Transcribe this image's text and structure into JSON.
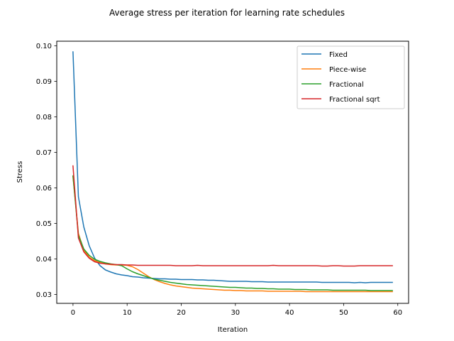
{
  "chart_data": {
    "type": "line",
    "title": "Average stress per iteration for learning rate schedules",
    "xlabel": "Iteration",
    "ylabel": "Stress",
    "xlim": [
      -3,
      62
    ],
    "ylim": [
      0.0275,
      0.1013
    ],
    "xticks": [
      0,
      10,
      20,
      30,
      40,
      50,
      60
    ],
    "yticks": [
      0.03,
      0.04,
      0.05,
      0.06,
      0.07,
      0.08,
      0.09,
      0.1
    ],
    "ytick_labels": [
      "0.03",
      "0.04",
      "0.05",
      "0.06",
      "0.07",
      "0.08",
      "0.09",
      "0.10"
    ],
    "grid": false,
    "legend_position": "top-right",
    "x": [
      0,
      1,
      2,
      3,
      4,
      5,
      6,
      7,
      8,
      9,
      10,
      11,
      12,
      13,
      14,
      15,
      16,
      17,
      18,
      19,
      20,
      21,
      22,
      23,
      24,
      25,
      26,
      27,
      28,
      29,
      30,
      31,
      32,
      33,
      34,
      35,
      36,
      37,
      38,
      39,
      40,
      41,
      42,
      43,
      44,
      45,
      46,
      47,
      48,
      49,
      50,
      51,
      52,
      53,
      54,
      55,
      56,
      57,
      58,
      59
    ],
    "series": [
      {
        "name": "Fixed",
        "color": "#1f77b4",
        "values": [
          0.0983,
          0.0575,
          0.049,
          0.0437,
          0.0402,
          0.0381,
          0.0369,
          0.0363,
          0.0358,
          0.0355,
          0.0353,
          0.035,
          0.0349,
          0.0347,
          0.0346,
          0.0345,
          0.0344,
          0.0344,
          0.0343,
          0.0343,
          0.0342,
          0.0342,
          0.0342,
          0.0341,
          0.0341,
          0.034,
          0.034,
          0.0339,
          0.0338,
          0.0337,
          0.0337,
          0.0337,
          0.0337,
          0.0336,
          0.0336,
          0.0336,
          0.0335,
          0.0335,
          0.0335,
          0.0335,
          0.0335,
          0.0335,
          0.0335,
          0.0335,
          0.0335,
          0.0335,
          0.0334,
          0.0334,
          0.0334,
          0.0334,
          0.0334,
          0.0334,
          0.0333,
          0.0334,
          0.0333,
          0.0334,
          0.0334,
          0.0334,
          0.0334,
          0.0334
        ]
      },
      {
        "name": "Piece-wise",
        "color": "#ff7f0e",
        "values": [
          0.0632,
          0.0472,
          0.0425,
          0.0405,
          0.0395,
          0.039,
          0.0386,
          0.0384,
          0.0383,
          0.0383,
          0.0382,
          0.0378,
          0.037,
          0.036,
          0.035,
          0.0342,
          0.0336,
          0.0331,
          0.0327,
          0.0324,
          0.0322,
          0.032,
          0.0318,
          0.0317,
          0.0316,
          0.0315,
          0.0314,
          0.0313,
          0.0312,
          0.0312,
          0.0311,
          0.0311,
          0.031,
          0.031,
          0.031,
          0.031,
          0.0309,
          0.0309,
          0.0309,
          0.0309,
          0.0309,
          0.0309,
          0.0309,
          0.0308,
          0.0308,
          0.0308,
          0.0308,
          0.0308,
          0.0308,
          0.0308,
          0.0308,
          0.0308,
          0.0308,
          0.0308,
          0.0308,
          0.0308,
          0.0308,
          0.0308,
          0.0308,
          0.0308
        ]
      },
      {
        "name": "Fractional",
        "color": "#2ca02c",
        "values": [
          0.0634,
          0.0467,
          0.0428,
          0.041,
          0.0399,
          0.0393,
          0.0389,
          0.0386,
          0.0384,
          0.0381,
          0.0372,
          0.0364,
          0.0358,
          0.0353,
          0.0348,
          0.0343,
          0.034,
          0.0337,
          0.0334,
          0.0332,
          0.033,
          0.0328,
          0.0327,
          0.0326,
          0.0325,
          0.0324,
          0.0323,
          0.0322,
          0.0321,
          0.032,
          0.032,
          0.0319,
          0.0318,
          0.0318,
          0.0317,
          0.0317,
          0.0316,
          0.0316,
          0.0315,
          0.0315,
          0.0315,
          0.0314,
          0.0314,
          0.0314,
          0.0313,
          0.0313,
          0.0313,
          0.0313,
          0.0312,
          0.0312,
          0.0312,
          0.0312,
          0.0312,
          0.0312,
          0.0312,
          0.0311,
          0.0311,
          0.0311,
          0.0311,
          0.0311
        ]
      },
      {
        "name": "Fractional sqrt",
        "color": "#d62728",
        "values": [
          0.0662,
          0.0459,
          0.042,
          0.0402,
          0.0392,
          0.0388,
          0.0386,
          0.0385,
          0.0384,
          0.0384,
          0.0383,
          0.0383,
          0.0382,
          0.0382,
          0.0382,
          0.0382,
          0.0382,
          0.0382,
          0.0382,
          0.0381,
          0.0381,
          0.0381,
          0.0381,
          0.0382,
          0.0381,
          0.0381,
          0.0381,
          0.0381,
          0.0381,
          0.0381,
          0.0381,
          0.0381,
          0.0381,
          0.0381,
          0.0381,
          0.0381,
          0.0381,
          0.0382,
          0.0381,
          0.0381,
          0.0381,
          0.0381,
          0.0381,
          0.0381,
          0.0381,
          0.0381,
          0.038,
          0.038,
          0.0381,
          0.0381,
          0.038,
          0.038,
          0.038,
          0.0381,
          0.0381,
          0.0381,
          0.0381,
          0.0381,
          0.0381,
          0.0381
        ]
      }
    ]
  }
}
